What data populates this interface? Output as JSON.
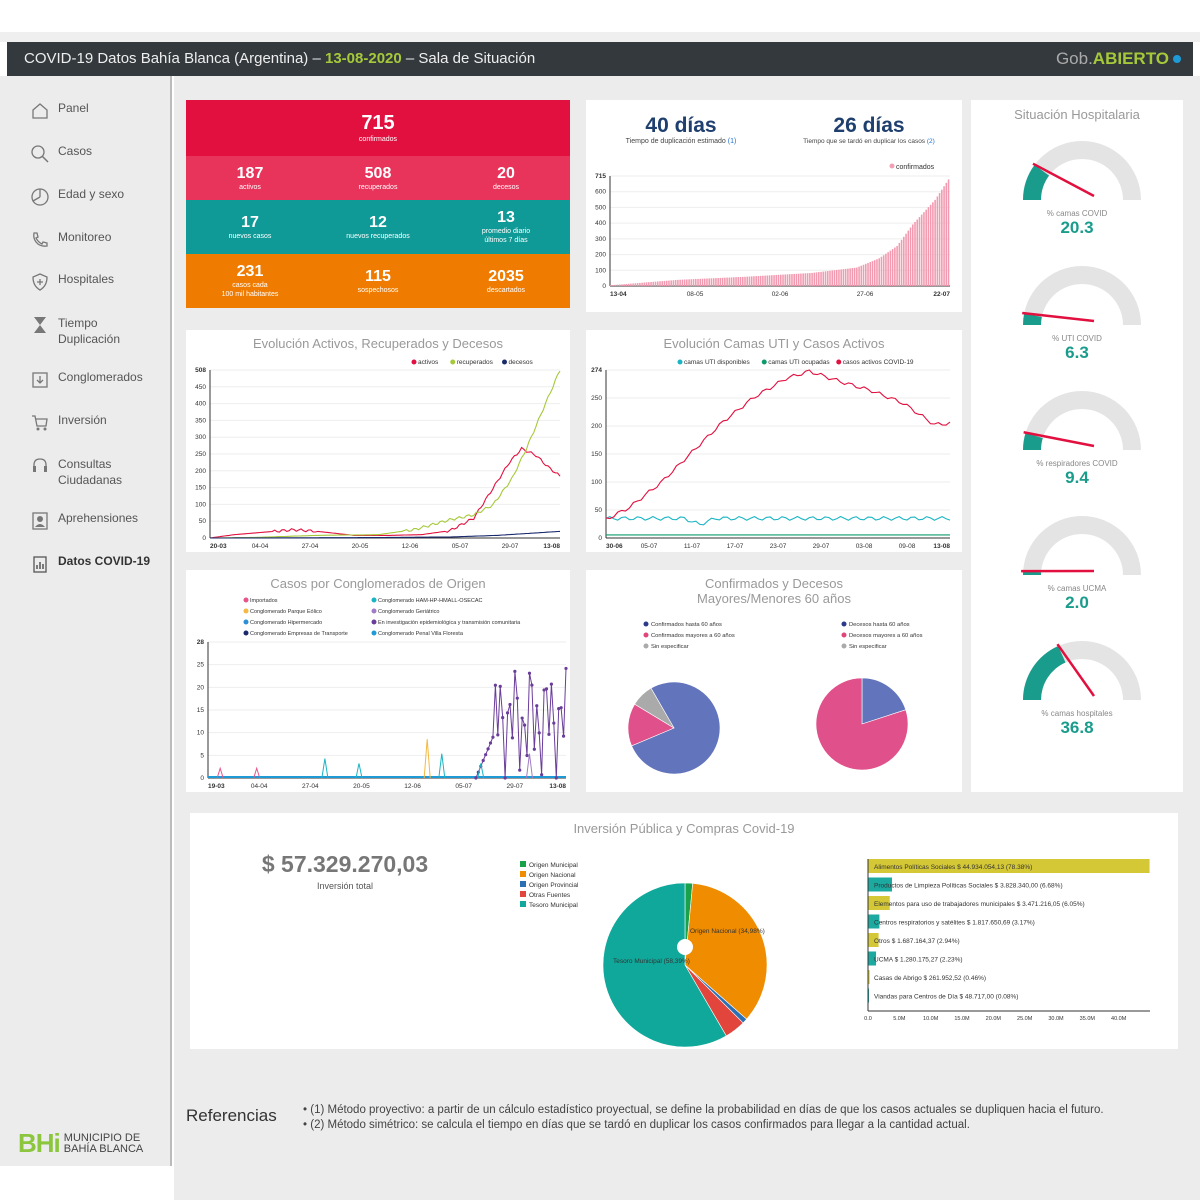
{
  "header": {
    "title_pre": "COVID-19 Datos Bahía Blanca (Argentina) –",
    "date": "13-08-2020",
    "title_post": "– Sala de Situación",
    "brand_gob": "Gob.",
    "brand_abierto": "ABIERTO"
  },
  "colors": {
    "accent": "#a6c93a",
    "kpi_red": "#e2103f",
    "kpi_pink": "#e8335b",
    "kpi_teal": "#0f9a97",
    "kpi_orange": "#ef7c00",
    "gauge": "#1a9c8c"
  },
  "sidebar": {
    "items": [
      {
        "label": "Panel",
        "icon": "home-icon"
      },
      {
        "label": "Casos",
        "icon": "search-icon"
      },
      {
        "label": "Edad y sexo",
        "icon": "pie-icon"
      },
      {
        "label": "Monitoreo",
        "icon": "phone-icon"
      },
      {
        "label": "Hospitales",
        "icon": "shield-plus-icon"
      },
      {
        "label": "Tiempo Duplicación",
        "icon": "hourglass-icon"
      },
      {
        "label": "Conglomerados",
        "icon": "download-icon"
      },
      {
        "label": "Inversión",
        "icon": "cart-icon"
      },
      {
        "label": "Consultas Ciudadanas",
        "icon": "headset-icon"
      },
      {
        "label": "Aprehensiones",
        "icon": "id-card-icon"
      },
      {
        "label": "Datos COVID-19",
        "icon": "clipboard-icon"
      }
    ]
  },
  "kpis": {
    "confirmados": {
      "value": "715",
      "label": "confirmados"
    },
    "row2": [
      {
        "value": "187",
        "label": "activos"
      },
      {
        "value": "508",
        "label": "recuperados"
      },
      {
        "value": "20",
        "label": "decesos"
      }
    ],
    "row3": [
      {
        "value": "17",
        "label": "nuevos casos"
      },
      {
        "value": "12",
        "label": "nuevos recuperados"
      },
      {
        "value": "13",
        "label": "promedio diario",
        "label2": "últimos 7 días"
      }
    ],
    "row4": [
      {
        "value": "231",
        "label": "casos cada",
        "label2": "100 mil habitantes"
      },
      {
        "value": "115",
        "label": "sospechosos"
      },
      {
        "value": "2035",
        "label": "descartados"
      }
    ]
  },
  "duplication": {
    "days_est": "40 días",
    "days_est_label": "Tiempo de duplicación estimado",
    "ref1": "(1)",
    "days_sym": "26 días",
    "days_sym_label": "Tiempo que se tardó en duplicar los casos",
    "ref2": "(2)"
  },
  "hospital": {
    "title": "Situación Hospitalaria",
    "gauges": [
      {
        "label": "% camas COVID",
        "value": "20.3",
        "pct": 20.3
      },
      {
        "label": "% UTI COVID",
        "value": "6.3",
        "pct": 6.3
      },
      {
        "label": "% respiradores COVID",
        "value": "9.4",
        "pct": 9.4
      },
      {
        "label": "% camas UCMA",
        "value": "2.0",
        "pct": 2.0
      },
      {
        "label": "% camas hospitales",
        "value": "36.8",
        "pct": 36.8
      }
    ]
  },
  "chart_data": [
    {
      "id": "confirmados",
      "type": "bar",
      "legend": [
        "confirmados"
      ],
      "ylim": [
        0,
        715
      ],
      "yticks": [
        "715",
        "600",
        "500",
        "400",
        "300",
        "200",
        "100",
        "0"
      ],
      "xticks": [
        "13-04",
        "08-05",
        "02-06",
        "27-06",
        "22-07"
      ],
      "knots": [
        [
          0,
          5
        ],
        [
          30,
          40
        ],
        [
          60,
          60
        ],
        [
          90,
          85
        ],
        [
          110,
          120
        ],
        [
          120,
          180
        ],
        [
          128,
          260
        ],
        [
          135,
          400
        ],
        [
          145,
          560
        ],
        [
          152,
          715
        ]
      ]
    },
    {
      "id": "evolucion",
      "type": "line",
      "title": "Evolución Activos, Recuperados y Decesos",
      "legend": [
        "activos",
        "recuperados",
        "decesos"
      ],
      "legend_colors": [
        "#e2103f",
        "#a6c93a",
        "#1a2a6c"
      ],
      "ylim": [
        0,
        508
      ],
      "yticks": [
        "508",
        "450",
        "400",
        "350",
        "300",
        "250",
        "200",
        "150",
        "100",
        "50",
        "0"
      ],
      "xticks": [
        "20-03",
        "04-04",
        "27-04",
        "20-05",
        "12-06",
        "05-07",
        "29-07",
        "13-08"
      ],
      "series": [
        {
          "name": "activos",
          "knots": [
            [
              0,
              0
            ],
            [
              10,
              10
            ],
            [
              35,
              25
            ],
            [
              45,
              20
            ],
            [
              60,
              8
            ],
            [
              75,
              8
            ],
            [
              88,
              10
            ],
            [
              100,
              22
            ],
            [
              110,
              60
            ],
            [
              118,
              150
            ],
            [
              125,
              230
            ],
            [
              130,
              270
            ],
            [
              136,
              250
            ],
            [
              141,
              215
            ],
            [
              146,
              187
            ]
          ]
        },
        {
          "name": "recuperados",
          "knots": [
            [
              0,
              0
            ],
            [
              20,
              2
            ],
            [
              45,
              8
            ],
            [
              70,
              10
            ],
            [
              85,
              25
            ],
            [
              100,
              55
            ],
            [
              110,
              70
            ],
            [
              118,
              100
            ],
            [
              126,
              180
            ],
            [
              132,
              270
            ],
            [
              139,
              390
            ],
            [
              146,
              508
            ]
          ]
        },
        {
          "name": "decesos",
          "knots": [
            [
              0,
              0
            ],
            [
              60,
              1
            ],
            [
              100,
              3
            ],
            [
              120,
              8
            ],
            [
              146,
              20
            ]
          ]
        }
      ]
    },
    {
      "id": "camas",
      "type": "line",
      "title": "Evolución Camas UTI y Casos Activos",
      "legend": [
        "camas UTI disponibles",
        "camas UTI ocupadas",
        "casos activos COVID-19"
      ],
      "legend_colors": [
        "#1ab5c4",
        "#0f9a6a",
        "#e2103f"
      ],
      "ylim": [
        0,
        274
      ],
      "yticks": [
        "274",
        "250",
        "200",
        "150",
        "100",
        "50",
        "0"
      ],
      "xticks": [
        "30-06",
        "05-07",
        "11-07",
        "17-07",
        "23-07",
        "29-07",
        "03-08",
        "09-08",
        "13-08"
      ],
      "series": [
        {
          "name": "camas UTI disponibles",
          "knots": [
            [
              0,
              32
            ],
            [
              10,
              32
            ],
            [
              12,
              22
            ],
            [
              14,
              32
            ],
            [
              44,
              32
            ]
          ]
        },
        {
          "name": "camas UTI ocupadas",
          "knots": [
            [
              0,
              5
            ],
            [
              44,
              5
            ]
          ]
        },
        {
          "name": "casos activos COVID-19",
          "knots": [
            [
              0,
              30
            ],
            [
              3,
              50
            ],
            [
              7,
              90
            ],
            [
              11,
              140
            ],
            [
              15,
              190
            ],
            [
              19,
              230
            ],
            [
              23,
              260
            ],
            [
              26,
              272
            ],
            [
              30,
              255
            ],
            [
              34,
              240
            ],
            [
              38,
              220
            ],
            [
              42,
              185
            ],
            [
              44,
              187
            ]
          ]
        }
      ]
    },
    {
      "id": "conglomerados",
      "type": "line",
      "title": "Casos por Conglomerados de Origen",
      "ylim": [
        0,
        28
      ],
      "yticks": [
        "28",
        "25",
        "20",
        "15",
        "10",
        "5",
        "0"
      ],
      "xticks": [
        "19-03",
        "04-04",
        "27-04",
        "20-05",
        "12-06",
        "05-07",
        "29-07",
        "13-08"
      ],
      "legend": [
        "Importados",
        "Conglomerado HAM-HP-HMALL-OSECAC",
        "Conglomerado Parque Eólico",
        "Conglomerado Geriátrico",
        "Conglomerado Hipermercado",
        "En investigación epidemiológica y transmisión comunitaria",
        "Conglomerado Empresas de Transporte",
        "Conglomerado Penal Villa Floresta"
      ],
      "legend_colors": [
        "#e8538a",
        "#1ab5c4",
        "#f4b942",
        "#a07cc5",
        "#2b8fd6",
        "#6a3d9a",
        "#1a2a6c",
        "#1e9bd7"
      ]
    },
    {
      "id": "menores60",
      "type": "pie",
      "title": "Confirmados y Decesos Mayores/Menores 60 años",
      "legend": [
        "Confirmados hasta 60 años",
        "Confirmados mayores a 60 años",
        "Sin especificar"
      ],
      "legend_colors": [
        "#2b3a8c",
        "#e0457b",
        "#aaa"
      ],
      "values": [
        77,
        15,
        8
      ]
    },
    {
      "id": "decesos60",
      "type": "pie",
      "legend": [
        "Decesos hasta 60 años",
        "Decesos mayores a 60 años",
        "Sin especificar"
      ],
      "legend_colors": [
        "#2b3a8c",
        "#e0457b",
        "#aaa"
      ],
      "values": [
        20,
        80,
        0
      ]
    },
    {
      "id": "origen",
      "type": "pie",
      "title": "Inversión Pública y Compras Covid-19",
      "legend": [
        "Origen Municipal",
        "Origen Nacional",
        "Origen Provincial",
        "Otras Fuentes",
        "Tesoro Municipal"
      ],
      "legend_colors": [
        "#1aa24b",
        "#ef8c00",
        "#2b6fb5",
        "#e2453b",
        "#0fa89a"
      ],
      "values": [
        1.5,
        34.98,
        1.0,
        4.13,
        58.39
      ],
      "slice_labels": [
        "",
        "Origen Nacional (34,98%)",
        "",
        "",
        "Tesoro Municipal (58,39%)"
      ]
    },
    {
      "id": "rubros",
      "type": "bar",
      "orientation": "horizontal",
      "xlim": [
        0,
        45
      ],
      "xticks": [
        "0.0",
        "5.0M",
        "10.0M",
        "15.0M",
        "20.0M",
        "25.0M",
        "30.0M",
        "35.0M",
        "40.0M"
      ],
      "labels": [
        "Alimentos Políticas Sociales $ 44.934.054,13 (78.38%)",
        "Productos de Limpieza Políticas Sociales $ 3.828.340,00 (6.68%)",
        "Elementos para uso de trabajadores municipales $ 3.471.216,05 (6.05%)",
        "Centros respiratorios y satélites $ 1.817.650,69 (3.17%)",
        "Otros $ 1.687.164,37 (2.94%)",
        "UCMA $ 1.280.175,27 (2.23%)",
        "Casas de Abrigo $ 261.952,52 (0.46%)",
        "Viandas para Centros de Día $ 48.717,00 (0.08%)"
      ],
      "values": [
        44.93,
        3.83,
        3.47,
        1.82,
        1.69,
        1.28,
        0.26,
        0.05
      ],
      "colors": [
        "#d4c837",
        "#1ba9a0",
        "#d4c837",
        "#1ba9a0",
        "#d4c837",
        "#1ba9a0",
        "#d4c837",
        "#1ba9a0"
      ]
    }
  ],
  "investment": {
    "total": "$ 57.329.270,03",
    "total_label": "Inversión total"
  },
  "refs": {
    "title": "Referencias",
    "items": [
      "(1) Método proyectivo: a partir de un cálculo estadístico proyectual, se define la probabilidad en días de que los casos actuales se dupliquen hacia el futuro.",
      "(2) Método simétrico: se calcula el tiempo en días que se tardó en duplicar los casos confirmados para llegar a la cantidad actual."
    ]
  },
  "logo": {
    "bhi": "BHi",
    "line1": "MUNICIPIO DE",
    "line2": "BAHÍA BLANCA"
  }
}
